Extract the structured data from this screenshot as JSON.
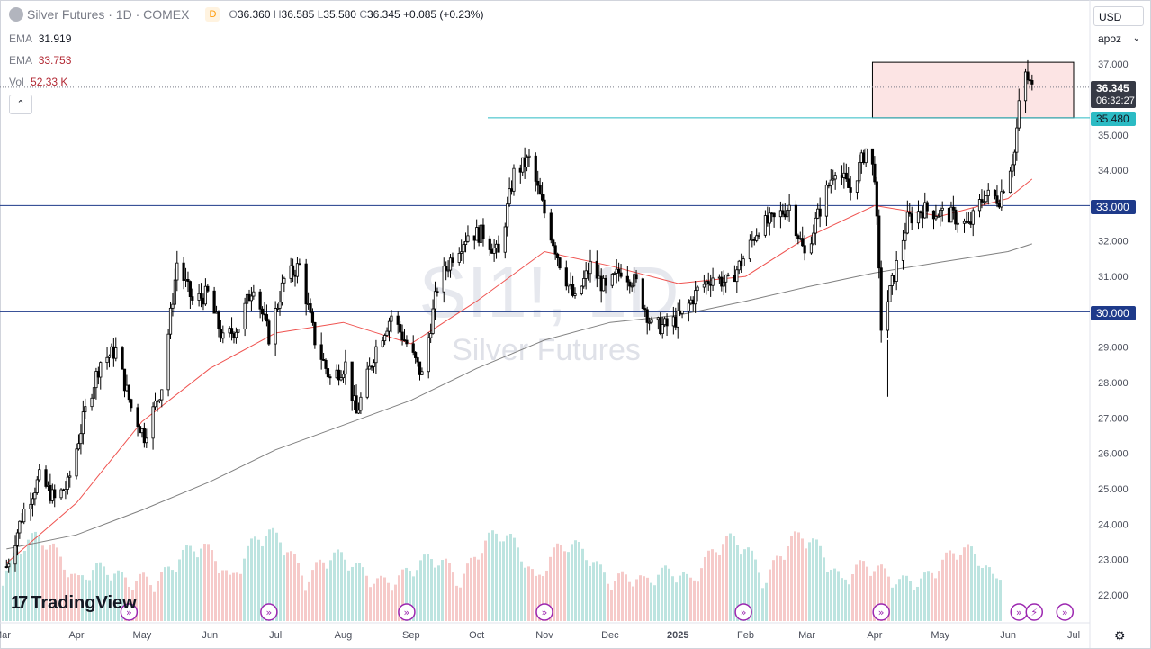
{
  "header": {
    "title": "Silver Futures · 1D · COMEX",
    "badge": "D",
    "ohlc": {
      "o_label": "O",
      "o": "36.360",
      "h_label": "H",
      "h": "36.585",
      "l_label": "L",
      "l": "35.580",
      "c_label": "C",
      "c": "36.345",
      "change": "+0.085 (+0.23%)"
    }
  },
  "indicators": [
    {
      "label": "EMA",
      "value": "31.919",
      "color": "#131722"
    },
    {
      "label": "EMA",
      "value": "33.753",
      "color": "#b22833"
    },
    {
      "label": "Vol",
      "value": "52.33 K",
      "color": "#b22833"
    }
  ],
  "controls": {
    "currency": "USD",
    "scale_mode": "apoz",
    "collapse_icon": "chevron-up-icon"
  },
  "watermark": {
    "symbol": "SI1!, 1D",
    "name": "Silver Futures"
  },
  "price_tags": {
    "last": "36.345",
    "countdown": "06:32:27",
    "level_high": "35.480",
    "level_mid": "33.000",
    "level_low": "30.000"
  },
  "branding": {
    "logo_mark": "17",
    "logo_text": "TradingView"
  },
  "colors": {
    "up": "#26a69a",
    "down": "#ef5350",
    "candle": "#000000",
    "ema_fast": "#ef5350",
    "ema_slow": "#808080",
    "hline": "#1e3a8a",
    "box_fill": "#fce4e4",
    "box_stroke": "#000000"
  },
  "chart_data": {
    "type": "candlestick",
    "title": "Silver Futures · 1D · COMEX",
    "y_axis": {
      "side": "right",
      "ticks": [
        "22.000",
        "23.000",
        "24.000",
        "25.000",
        "26.000",
        "27.000",
        "28.000",
        "29.000",
        "30.000",
        "31.000",
        "32.000",
        "33.000",
        "34.000",
        "35.000",
        "36.000",
        "37.000"
      ],
      "ylim": [
        21.5,
        37.2
      ]
    },
    "x_axis": {
      "ticks": [
        "Mar",
        "Apr",
        "May",
        "Jun",
        "Jul",
        "Aug",
        "Sep",
        "Oct",
        "Nov",
        "Dec",
        "2025",
        "Feb",
        "Mar",
        "Apr",
        "May",
        "Jun",
        "Jul"
      ]
    },
    "grid": false,
    "horizontal_levels": [
      35.48,
      33.0,
      30.0
    ],
    "highlight_box": {
      "from": "2025-03-31",
      "to": "2025-07-01",
      "top": 37.05,
      "bottom": 35.48
    },
    "price_path": [
      [
        "2024-02-29",
        22.8
      ],
      [
        "2024-03-08",
        24.4
      ],
      [
        "2024-03-15",
        25.3
      ],
      [
        "2024-03-22",
        24.7
      ],
      [
        "2024-03-28",
        25.1
      ],
      [
        "2024-04-05",
        27.2
      ],
      [
        "2024-04-12",
        28.6
      ],
      [
        "2024-04-19",
        28.9
      ],
      [
        "2024-04-26",
        27.3
      ],
      [
        "2024-05-02",
        26.5
      ],
      [
        "2024-05-10",
        27.9
      ],
      [
        "2024-05-17",
        31.4
      ],
      [
        "2024-05-24",
        30.3
      ],
      [
        "2024-05-31",
        30.5
      ],
      [
        "2024-06-07",
        29.2
      ],
      [
        "2024-06-14",
        29.6
      ],
      [
        "2024-06-21",
        30.8
      ],
      [
        "2024-06-28",
        29.3
      ],
      [
        "2024-07-05",
        30.9
      ],
      [
        "2024-07-12",
        31.3
      ],
      [
        "2024-07-19",
        29.2
      ],
      [
        "2024-07-26",
        28.1
      ],
      [
        "2024-08-02",
        28.5
      ],
      [
        "2024-08-07",
        27.1
      ],
      [
        "2024-08-16",
        29.0
      ],
      [
        "2024-08-23",
        29.9
      ],
      [
        "2024-08-30",
        29.1
      ],
      [
        "2024-09-06",
        28.2
      ],
      [
        "2024-09-13",
        30.7
      ],
      [
        "2024-09-20",
        31.6
      ],
      [
        "2024-09-27",
        32.2
      ],
      [
        "2024-10-04",
        32.2
      ],
      [
        "2024-10-11",
        31.6
      ],
      [
        "2024-10-18",
        33.9
      ],
      [
        "2024-10-25",
        34.3
      ],
      [
        "2024-11-01",
        32.8
      ],
      [
        "2024-11-08",
        31.4
      ],
      [
        "2024-11-15",
        30.3
      ],
      [
        "2024-11-22",
        31.3
      ],
      [
        "2024-11-29",
        30.6
      ],
      [
        "2024-12-06",
        31.2
      ],
      [
        "2024-12-13",
        30.8
      ],
      [
        "2024-12-20",
        29.6
      ],
      [
        "2024-12-27",
        29.6
      ],
      [
        "2025-01-03",
        29.9
      ],
      [
        "2025-01-10",
        30.6
      ],
      [
        "2025-01-17",
        31.0
      ],
      [
        "2025-01-24",
        30.8
      ],
      [
        "2025-01-31",
        31.5
      ],
      [
        "2025-02-07",
        32.4
      ],
      [
        "2025-02-14",
        32.6
      ],
      [
        "2025-02-21",
        33.0
      ],
      [
        "2025-02-28",
        31.6
      ],
      [
        "2025-03-07",
        32.9
      ],
      [
        "2025-03-14",
        34.1
      ],
      [
        "2025-03-21",
        33.4
      ],
      [
        "2025-03-28",
        34.6
      ],
      [
        "2025-04-01",
        33.9
      ],
      [
        "2025-04-04",
        29.6
      ],
      [
        "2025-04-09",
        30.8
      ],
      [
        "2025-04-16",
        32.6
      ],
      [
        "2025-04-23",
        32.9
      ],
      [
        "2025-04-30",
        32.8
      ],
      [
        "2025-05-07",
        32.7
      ],
      [
        "2025-05-14",
        32.4
      ],
      [
        "2025-05-21",
        33.3
      ],
      [
        "2025-05-28",
        33.2
      ],
      [
        "2025-06-04",
        34.5
      ],
      [
        "2025-06-06",
        35.8
      ],
      [
        "2025-06-09",
        36.7
      ],
      [
        "2025-06-12",
        36.3
      ]
    ],
    "ema_fast": [
      [
        "2024-02-29",
        22.9
      ],
      [
        "2024-04-01",
        24.6
      ],
      [
        "2024-05-01",
        26.9
      ],
      [
        "2024-06-01",
        28.4
      ],
      [
        "2024-07-01",
        29.4
      ],
      [
        "2024-08-01",
        29.7
      ],
      [
        "2024-09-01",
        29.1
      ],
      [
        "2024-10-01",
        30.3
      ],
      [
        "2024-11-01",
        31.7
      ],
      [
        "2024-12-01",
        31.3
      ],
      [
        "2025-01-01",
        30.8
      ],
      [
        "2025-02-01",
        31.0
      ],
      [
        "2025-03-01",
        32.1
      ],
      [
        "2025-04-01",
        33.0
      ],
      [
        "2025-05-01",
        32.7
      ],
      [
        "2025-06-01",
        33.2
      ],
      [
        "2025-06-12",
        33.75
      ]
    ],
    "ema_slow": [
      [
        "2024-02-29",
        23.3
      ],
      [
        "2024-04-01",
        23.7
      ],
      [
        "2024-05-01",
        24.4
      ],
      [
        "2024-06-01",
        25.2
      ],
      [
        "2024-07-01",
        26.1
      ],
      [
        "2024-08-01",
        26.8
      ],
      [
        "2024-09-01",
        27.5
      ],
      [
        "2024-10-01",
        28.4
      ],
      [
        "2024-11-01",
        29.2
      ],
      [
        "2024-12-01",
        29.7
      ],
      [
        "2025-01-01",
        29.9
      ],
      [
        "2025-02-01",
        30.3
      ],
      [
        "2025-03-01",
        30.7
      ],
      [
        "2025-04-01",
        31.1
      ],
      [
        "2025-05-01",
        31.4
      ],
      [
        "2025-06-01",
        31.7
      ],
      [
        "2025-06-12",
        31.92
      ]
    ]
  }
}
